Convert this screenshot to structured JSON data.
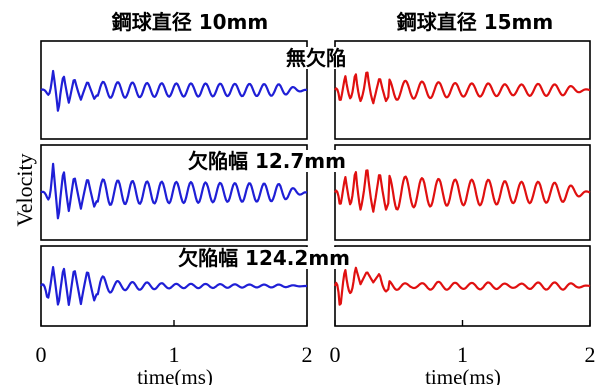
{
  "figure": {
    "column_titles": [
      "鋼球直径 10mm",
      "鋼球直径 15mm"
    ],
    "ylabel": "Velocity",
    "xlabel": "time(ms)",
    "row_labels": [
      "無欠陥",
      "欠陥幅 12.7mm",
      "欠陥幅 124.2mm"
    ]
  },
  "chart_data": [
    {
      "type": "line",
      "title": "鋼球直径 10mm",
      "xlabel": "time(ms)",
      "ylabel": "Velocity",
      "xlim": [
        0,
        2
      ],
      "xticks": [
        0,
        1,
        2
      ],
      "color": "#1f1fd6",
      "panels": [
        {
          "label": "無欠陥",
          "x": [
            0.0,
            0.05,
            0.09,
            0.13,
            0.17,
            0.21,
            0.25,
            0.3,
            0.35,
            0.4,
            0.5,
            0.6,
            0.8,
            1.0,
            1.2,
            1.4,
            1.6,
            1.8,
            2.0
          ],
          "y": [
            0.0,
            -0.1,
            0.45,
            -0.55,
            0.35,
            -0.3,
            0.28,
            -0.22,
            0.2,
            -0.2,
            0.18,
            -0.18,
            0.16,
            -0.15,
            0.15,
            -0.14,
            0.14,
            -0.13,
            0.0
          ]
        },
        {
          "label": "欠陥幅 12.7mm",
          "x": [
            0.0,
            0.05,
            0.09,
            0.13,
            0.17,
            0.21,
            0.25,
            0.3,
            0.35,
            0.4,
            0.5,
            0.6,
            0.8,
            1.0,
            1.2,
            1.4,
            1.6,
            1.8,
            2.0
          ],
          "y": [
            0.0,
            -0.15,
            0.7,
            -0.7,
            0.55,
            -0.45,
            0.4,
            -0.38,
            0.35,
            -0.33,
            0.3,
            -0.28,
            0.26,
            -0.25,
            0.24,
            -0.22,
            0.22,
            -0.2,
            0.0
          ]
        },
        {
          "label": "欠陥幅 124.2mm",
          "x": [
            0.0,
            0.05,
            0.09,
            0.13,
            0.17,
            0.21,
            0.25,
            0.3,
            0.35,
            0.4,
            0.5,
            0.6,
            0.8,
            1.0,
            1.2,
            1.4,
            1.6,
            1.8,
            2.0
          ],
          "y": [
            0.0,
            -0.4,
            0.55,
            -0.6,
            0.55,
            -0.55,
            0.5,
            -0.5,
            0.45,
            -0.4,
            0.2,
            -0.12,
            0.1,
            -0.06,
            0.06,
            -0.05,
            0.04,
            -0.04,
            0.0
          ]
        }
      ]
    },
    {
      "type": "line",
      "title": "鋼球直径 15mm",
      "xlabel": "time(ms)",
      "xlim": [
        0,
        2
      ],
      "xticks": [
        0,
        1,
        2
      ],
      "color": "#e01010",
      "panels": [
        {
          "label": "無欠陥",
          "x": [
            0.0,
            0.04,
            0.08,
            0.12,
            0.16,
            0.2,
            0.25,
            0.3,
            0.35,
            0.4,
            0.5,
            0.6,
            0.8,
            1.0,
            1.2,
            1.4,
            1.6,
            1.8,
            2.0
          ],
          "y": [
            0.0,
            -0.3,
            0.35,
            -0.2,
            0.45,
            -0.25,
            0.5,
            -0.3,
            0.3,
            -0.25,
            0.22,
            -0.2,
            0.18,
            -0.15,
            0.15,
            -0.12,
            0.14,
            -0.12,
            0.0
          ]
        },
        {
          "label": "欠陥幅 12.7mm",
          "x": [
            0.0,
            0.04,
            0.08,
            0.12,
            0.16,
            0.2,
            0.25,
            0.3,
            0.35,
            0.4,
            0.5,
            0.6,
            0.8,
            1.0,
            1.2,
            1.4,
            1.6,
            1.8,
            2.0
          ],
          "y": [
            0.0,
            -0.35,
            0.4,
            -0.3,
            0.6,
            -0.4,
            0.65,
            -0.45,
            0.5,
            -0.4,
            0.4,
            -0.35,
            0.32,
            -0.3,
            0.3,
            -0.25,
            0.25,
            -0.22,
            0.0
          ]
        },
        {
          "label": "欠陥幅 124.2mm",
          "x": [
            0.0,
            0.04,
            0.08,
            0.12,
            0.16,
            0.2,
            0.25,
            0.3,
            0.35,
            0.4,
            0.5,
            0.6,
            0.8,
            1.0,
            1.2,
            1.4,
            1.6,
            1.8,
            2.0
          ],
          "y": [
            0.0,
            -0.7,
            0.5,
            -0.2,
            0.55,
            0.05,
            0.4,
            0.1,
            0.35,
            -0.15,
            0.1,
            0.05,
            0.12,
            -0.08,
            0.1,
            -0.05,
            0.1,
            -0.1,
            0.0
          ]
        }
      ]
    }
  ]
}
